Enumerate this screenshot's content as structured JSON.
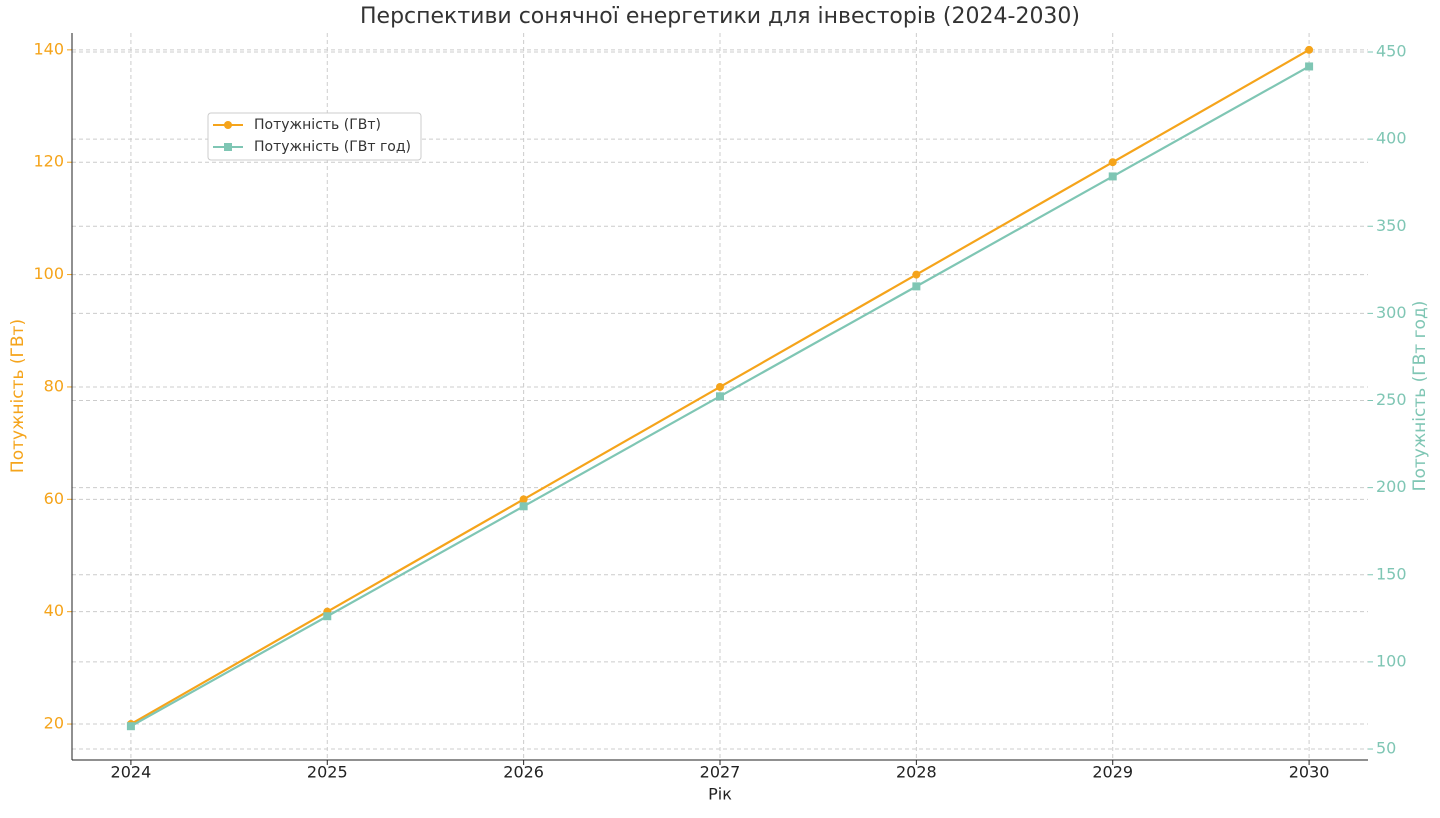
{
  "chart_data": {
    "type": "line",
    "title": "Перспективи сонячної енергетики для інвесторів (2024-2030)",
    "xlabel": "Рік",
    "ylabel": "Потужність (ГВт)",
    "y2label": "Потужність (ГВт год)",
    "x": [
      2024,
      2025,
      2026,
      2027,
      2028,
      2029,
      2030
    ],
    "series": [
      {
        "name": "Потужність (ГВт)",
        "color": "#f5a41b",
        "marker": "circle",
        "values": [
          20,
          40,
          60,
          80,
          100,
          120,
          140
        ]
      },
      {
        "name": "Потужність (ГВт год)",
        "color": "#7fc6b4",
        "marker": "square",
        "axis": "y2",
        "values": [
          63.1,
          126.2,
          189.3,
          252.4,
          315.5,
          378.6,
          441.7
        ]
      }
    ],
    "xlim": [
      2023.7,
      2030.3
    ],
    "xticks": [
      2024,
      2025,
      2026,
      2027,
      2028,
      2029,
      2030
    ],
    "ylim": [
      13.6,
      143
    ],
    "yticks": [
      20,
      40,
      60,
      80,
      100,
      120,
      140
    ],
    "y2lim": [
      43.7,
      460.9
    ],
    "y2ticks": [
      50,
      100,
      150,
      200,
      250,
      300,
      350,
      400,
      450
    ],
    "grid": true,
    "legend": "upper left"
  }
}
